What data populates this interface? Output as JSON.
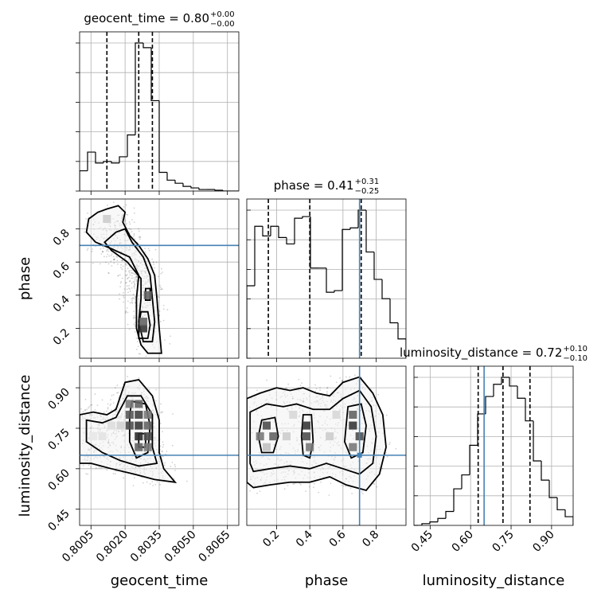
{
  "chart_data": {
    "type": "corner",
    "parameters": [
      "geocent_time",
      "phase",
      "luminosity_distance"
    ],
    "axis_labels": {
      "x": [
        "geocent_time",
        "phase",
        "luminosity_distance"
      ],
      "y": [
        "phase",
        "luminosity_distance"
      ]
    },
    "ranges": {
      "geocent_time": [
        0.8,
        0.807
      ],
      "phase": [
        0.02,
        0.98
      ],
      "luminosity_distance": [
        0.39,
        0.98
      ]
    },
    "ticks": {
      "geocent_time": [
        "0.8005",
        "0.8020",
        "0.8035",
        "0.8050",
        "0.8065"
      ],
      "phase": [
        "0.2",
        "0.4",
        "0.6",
        "0.8"
      ],
      "luminosity_distance": [
        "0.45",
        "0.60",
        "0.75",
        "0.90"
      ]
    },
    "titles": [
      {
        "param": "geocent_time",
        "text": "geocent_time = 0.80",
        "plus": "+0.00",
        "minus": "−0.00"
      },
      {
        "param": "phase",
        "text": "phase = 0.41",
        "plus": "+0.31",
        "minus": "−0.25"
      },
      {
        "param": "luminosity_distance",
        "text": "luminosity_distance = 0.72",
        "plus": "+0.10",
        "minus": "−0.10"
      }
    ],
    "truths": {
      "geocent_time": null,
      "phase": 0.7,
      "luminosity_distance": 0.65
    },
    "quantiles": {
      "geocent_time": [
        0.8012,
        0.8026,
        0.8032
      ],
      "phase": [
        0.15,
        0.4,
        0.71
      ],
      "luminosity_distance": [
        0.628,
        0.72,
        0.82
      ]
    },
    "histograms": {
      "geocent_time": {
        "edges": [
          0.8,
          0.80035,
          0.8007,
          0.80105,
          0.8014,
          0.80175,
          0.8021,
          0.80245,
          0.8028,
          0.80315,
          0.8035,
          0.80385,
          0.8042,
          0.80455,
          0.8049,
          0.80525,
          0.8056,
          0.80595,
          0.8063,
          0.80665,
          0.807
        ],
        "counts": [
          0.13,
          0.25,
          0.18,
          0.19,
          0.18,
          0.22,
          0.36,
          0.95,
          0.92,
          0.58,
          0.12,
          0.07,
          0.05,
          0.03,
          0.02,
          0.01,
          0.01,
          0.005,
          0.0,
          0.0
        ]
      },
      "phase": {
        "edges": [
          0.02,
          0.068,
          0.116,
          0.164,
          0.212,
          0.26,
          0.308,
          0.356,
          0.404,
          0.452,
          0.5,
          0.548,
          0.596,
          0.644,
          0.692,
          0.74,
          0.788,
          0.836,
          0.884,
          0.932,
          0.98
        ],
        "counts": [
          0.45,
          0.82,
          0.76,
          0.82,
          0.75,
          0.71,
          0.87,
          0.88,
          0.56,
          0.56,
          0.41,
          0.42,
          0.8,
          0.81,
          0.92,
          0.66,
          0.49,
          0.37,
          0.22,
          0.12
        ]
      },
      "luminosity_distance": {
        "edges": [
          0.39,
          0.4195,
          0.449,
          0.4785,
          0.508,
          0.5375,
          0.567,
          0.5965,
          0.626,
          0.6555,
          0.685,
          0.7145,
          0.744,
          0.7735,
          0.803,
          0.8325,
          0.862,
          0.8915,
          0.921,
          0.9505,
          0.98
        ],
        "counts": [
          0.0,
          0.01,
          0.02,
          0.04,
          0.08,
          0.21,
          0.29,
          0.46,
          0.64,
          0.74,
          0.81,
          0.85,
          0.8,
          0.73,
          0.6,
          0.37,
          0.26,
          0.16,
          0.09,
          0.05
        ]
      }
    },
    "contours": [
      {
        "xparam": "geocent_time",
        "yparam": "phase",
        "levels": [
          [
            [
              0.8004,
              0.86
            ],
            [
              0.8008,
              0.9
            ],
            [
              0.8012,
              0.92
            ],
            [
              0.8017,
              0.94
            ],
            [
              0.802,
              0.9
            ],
            [
              0.8019,
              0.84
            ],
            [
              0.8022,
              0.76
            ],
            [
              0.8026,
              0.7
            ],
            [
              0.803,
              0.62
            ],
            [
              0.8033,
              0.52
            ],
            [
              0.8034,
              0.38
            ],
            [
              0.8035,
              0.2
            ],
            [
              0.8036,
              0.05
            ],
            [
              0.803,
              0.05
            ],
            [
              0.8027,
              0.1
            ],
            [
              0.8025,
              0.2
            ],
            [
              0.8025,
              0.38
            ],
            [
              0.8026,
              0.52
            ],
            [
              0.8022,
              0.63
            ],
            [
              0.8014,
              0.68
            ],
            [
              0.8007,
              0.72
            ],
            [
              0.8003,
              0.78
            ]
          ],
          [
            [
              0.8011,
              0.72
            ],
            [
              0.8016,
              0.78
            ],
            [
              0.802,
              0.8
            ],
            [
              0.8023,
              0.72
            ],
            [
              0.8028,
              0.63
            ],
            [
              0.8031,
              0.52
            ],
            [
              0.8032,
              0.38
            ],
            [
              0.8033,
              0.24
            ],
            [
              0.8032,
              0.12
            ],
            [
              0.8028,
              0.12
            ],
            [
              0.8026,
              0.24
            ],
            [
              0.8027,
              0.38
            ],
            [
              0.8027,
              0.5
            ],
            [
              0.8021,
              0.6
            ],
            [
              0.8014,
              0.67
            ]
          ],
          [
            [
              0.8026,
              0.14
            ],
            [
              0.803,
              0.14
            ],
            [
              0.8031,
              0.22
            ],
            [
              0.803,
              0.3
            ],
            [
              0.8027,
              0.3
            ],
            [
              0.8026,
              0.22
            ]
          ],
          [
            [
              0.8029,
              0.37
            ],
            [
              0.8031,
              0.37
            ],
            [
              0.8031,
              0.44
            ],
            [
              0.8029,
              0.44
            ]
          ]
        ]
      },
      {
        "xparam": "geocent_time",
        "yparam": "luminosity_distance",
        "levels": [
          [
            [
              0.8,
              0.8
            ],
            [
              0.8006,
              0.81
            ],
            [
              0.8012,
              0.8
            ],
            [
              0.8016,
              0.82
            ],
            [
              0.802,
              0.92
            ],
            [
              0.8026,
              0.93
            ],
            [
              0.8032,
              0.87
            ],
            [
              0.8035,
              0.78
            ],
            [
              0.8035,
              0.66
            ],
            [
              0.8037,
              0.6
            ],
            [
              0.8042,
              0.55
            ],
            [
              0.8033,
              0.56
            ],
            [
              0.8024,
              0.58
            ],
            [
              0.8014,
              0.6
            ],
            [
              0.8005,
              0.62
            ],
            [
              0.8,
              0.62
            ]
          ],
          [
            [
              0.8003,
              0.78
            ],
            [
              0.801,
              0.77
            ],
            [
              0.8016,
              0.79
            ],
            [
              0.8021,
              0.87
            ],
            [
              0.8027,
              0.87
            ],
            [
              0.8032,
              0.8
            ],
            [
              0.8032,
              0.68
            ],
            [
              0.8034,
              0.62
            ],
            [
              0.8026,
              0.61
            ],
            [
              0.8018,
              0.63
            ],
            [
              0.801,
              0.66
            ],
            [
              0.8003,
              0.7
            ]
          ],
          [
            [
              0.8023,
              0.85
            ],
            [
              0.8029,
              0.84
            ],
            [
              0.8031,
              0.76
            ],
            [
              0.803,
              0.66
            ],
            [
              0.8025,
              0.64
            ],
            [
              0.8022,
              0.7
            ],
            [
              0.8022,
              0.8
            ]
          ],
          [
            [
              0.8026,
              0.73
            ],
            [
              0.8029,
              0.73
            ],
            [
              0.8029,
              0.68
            ],
            [
              0.8026,
              0.68
            ]
          ]
        ]
      },
      {
        "xparam": "phase",
        "yparam": "luminosity_distance",
        "levels": [
          [
            [
              0.02,
              0.86
            ],
            [
              0.1,
              0.88
            ],
            [
              0.2,
              0.9
            ],
            [
              0.28,
              0.89
            ],
            [
              0.36,
              0.9
            ],
            [
              0.44,
              0.88
            ],
            [
              0.52,
              0.87
            ],
            [
              0.6,
              0.92
            ],
            [
              0.7,
              0.94
            ],
            [
              0.78,
              0.88
            ],
            [
              0.84,
              0.8
            ],
            [
              0.86,
              0.68
            ],
            [
              0.82,
              0.58
            ],
            [
              0.74,
              0.52
            ],
            [
              0.62,
              0.54
            ],
            [
              0.52,
              0.57
            ],
            [
              0.4,
              0.55
            ],
            [
              0.28,
              0.55
            ],
            [
              0.16,
              0.54
            ],
            [
              0.06,
              0.53
            ],
            [
              0.02,
              0.55
            ]
          ],
          [
            [
              0.04,
              0.81
            ],
            [
              0.14,
              0.84
            ],
            [
              0.24,
              0.83
            ],
            [
              0.32,
              0.84
            ],
            [
              0.42,
              0.82
            ],
            [
              0.52,
              0.82
            ],
            [
              0.6,
              0.86
            ],
            [
              0.7,
              0.89
            ],
            [
              0.77,
              0.83
            ],
            [
              0.8,
              0.72
            ],
            [
              0.78,
              0.62
            ],
            [
              0.7,
              0.58
            ],
            [
              0.6,
              0.6
            ],
            [
              0.5,
              0.62
            ],
            [
              0.4,
              0.6
            ],
            [
              0.28,
              0.61
            ],
            [
              0.16,
              0.6
            ],
            [
              0.06,
              0.59
            ],
            [
              0.04,
              0.62
            ]
          ],
          [
            [
              0.11,
              0.78
            ],
            [
              0.19,
              0.79
            ],
            [
              0.21,
              0.72
            ],
            [
              0.18,
              0.66
            ],
            [
              0.11,
              0.66
            ],
            [
              0.09,
              0.72
            ]
          ],
          [
            [
              0.36,
              0.8
            ],
            [
              0.41,
              0.8
            ],
            [
              0.42,
              0.7
            ],
            [
              0.4,
              0.64
            ],
            [
              0.36,
              0.65
            ],
            [
              0.35,
              0.72
            ]
          ],
          [
            [
              0.63,
              0.83
            ],
            [
              0.71,
              0.84
            ],
            [
              0.74,
              0.76
            ],
            [
              0.72,
              0.66
            ],
            [
              0.65,
              0.64
            ],
            [
              0.61,
              0.7
            ]
          ]
        ]
      }
    ],
    "density_cells": [
      {
        "xparam": "geocent_time",
        "yparam": "luminosity_distance",
        "cells": [
          [
            0.8022,
            0.84,
            0.6
          ],
          [
            0.8026,
            0.84,
            0.7
          ],
          [
            0.8022,
            0.8,
            0.75
          ],
          [
            0.8026,
            0.8,
            0.85
          ],
          [
            0.803,
            0.8,
            0.6
          ],
          [
            0.8022,
            0.76,
            0.8
          ],
          [
            0.8026,
            0.76,
            0.9
          ],
          [
            0.803,
            0.76,
            0.7
          ],
          [
            0.8026,
            0.72,
            0.95
          ],
          [
            0.803,
            0.72,
            0.8
          ],
          [
            0.8026,
            0.68,
            0.7
          ],
          [
            0.803,
            0.68,
            0.6
          ],
          [
            0.8018,
            0.76,
            0.35
          ],
          [
            0.8014,
            0.76,
            0.25
          ],
          [
            0.801,
            0.72,
            0.2
          ],
          [
            0.8006,
            0.72,
            0.15
          ]
        ]
      },
      {
        "xparam": "phase",
        "yparam": "luminosity_distance",
        "cells": [
          [
            0.14,
            0.76,
            0.8
          ],
          [
            0.18,
            0.72,
            0.7
          ],
          [
            0.1,
            0.72,
            0.6
          ],
          [
            0.14,
            0.68,
            0.5
          ],
          [
            0.38,
            0.76,
            0.9
          ],
          [
            0.38,
            0.72,
            0.8
          ],
          [
            0.4,
            0.68,
            0.6
          ],
          [
            0.66,
            0.8,
            0.7
          ],
          [
            0.66,
            0.76,
            0.9
          ],
          [
            0.7,
            0.72,
            0.8
          ],
          [
            0.66,
            0.68,
            0.6
          ],
          [
            0.26,
            0.72,
            0.4
          ],
          [
            0.52,
            0.72,
            0.4
          ],
          [
            0.3,
            0.8,
            0.3
          ],
          [
            0.56,
            0.8,
            0.3
          ]
        ]
      },
      {
        "xparam": "geocent_time",
        "yparam": "phase",
        "cells": [
          [
            0.8028,
            0.2,
            0.9
          ],
          [
            0.8028,
            0.24,
            0.7
          ],
          [
            0.803,
            0.4,
            0.7
          ],
          [
            0.8012,
            0.86,
            0.4
          ]
        ]
      }
    ]
  }
}
